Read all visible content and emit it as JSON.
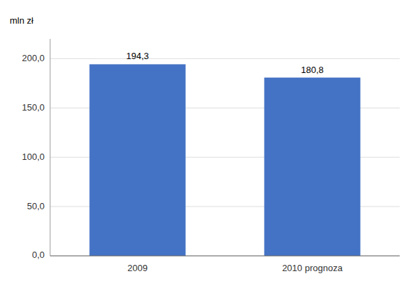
{
  "chart_data": {
    "type": "bar",
    "ylabel": "mln zł",
    "categories": [
      "2009",
      "2010 prognoza"
    ],
    "values": [
      194.3,
      180.8
    ],
    "value_labels": [
      "194,3",
      "180,8"
    ],
    "data_labels": true,
    "color": "#4472C4",
    "ylim": [
      0,
      220
    ],
    "yticks": [
      {
        "value": 0,
        "label": "0,0"
      },
      {
        "value": 50,
        "label": "50,0"
      },
      {
        "value": 100,
        "label": "100,0"
      },
      {
        "value": 150,
        "label": "150,0"
      },
      {
        "value": 200,
        "label": "200,0"
      }
    ],
    "grid": true
  }
}
